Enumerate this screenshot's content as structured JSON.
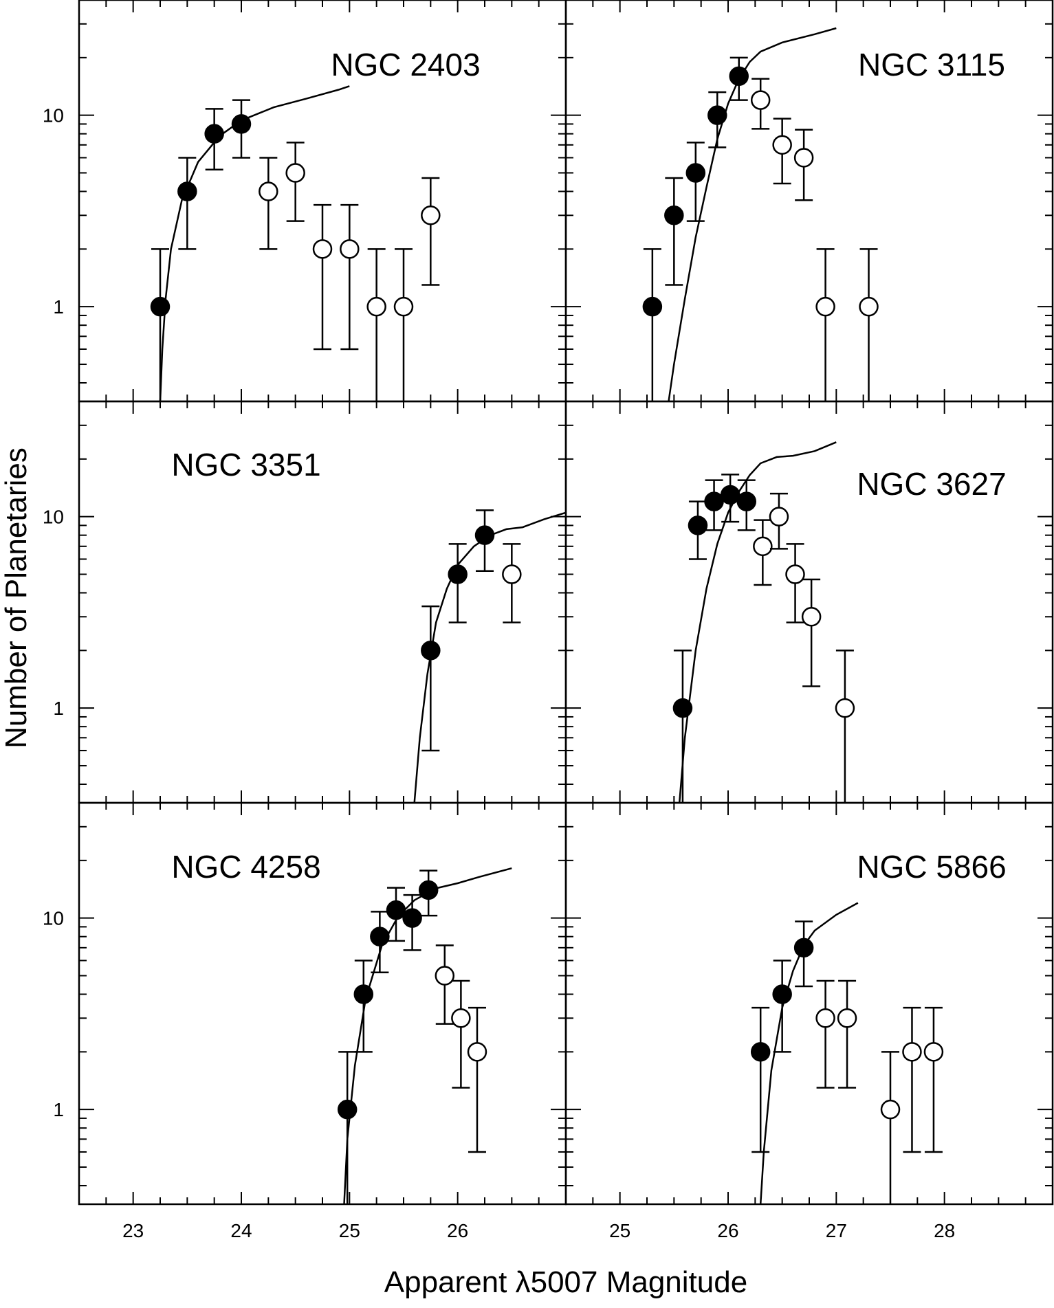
{
  "figure": {
    "xlabel": "Apparent λ5007 Magnitude",
    "ylabel": "Number of Planetaries"
  },
  "chart_data": [
    {
      "type": "scatter",
      "title": "NGC 2403",
      "xlim": [
        22.5,
        27
      ],
      "ylim": [
        0.32,
        40
      ],
      "yscale": "log",
      "xticklabels": [],
      "yticklabels": [
        "1",
        "10"
      ],
      "series": [
        {
          "marker": "filled",
          "x": [
            23.25,
            23.5,
            23.75,
            24.0
          ],
          "y": [
            1,
            4,
            8,
            9
          ],
          "yerr_low": [
            0.32,
            2,
            5.2,
            6
          ],
          "yerr_high": [
            2,
            6,
            10.8,
            12
          ]
        },
        {
          "marker": "open",
          "x": [
            24.25,
            24.5,
            24.75,
            25.0,
            25.25,
            25.5,
            25.75
          ],
          "y": [
            4,
            5,
            2,
            2,
            1,
            1,
            3
          ],
          "yerr_low": [
            2,
            2.8,
            0.6,
            0.6,
            0.32,
            0.32,
            1.3
          ],
          "yerr_high": [
            6,
            7.2,
            3.4,
            3.4,
            2,
            2,
            4.7
          ]
        }
      ],
      "curve": {
        "x": [
          23.25,
          23.27,
          23.3,
          23.35,
          23.45,
          23.6,
          23.8,
          24.0,
          24.3,
          24.6,
          24.9,
          25.0
        ],
        "y": [
          0.32,
          0.6,
          1.1,
          2.0,
          3.6,
          5.7,
          7.8,
          9.4,
          11.0,
          12.2,
          13.6,
          14.2
        ]
      }
    },
    {
      "type": "scatter",
      "title": "NGC 3115",
      "xlim": [
        24.5,
        29
      ],
      "ylim": [
        0.32,
        40
      ],
      "yscale": "log",
      "xticklabels": [],
      "yticklabels": [],
      "series": [
        {
          "marker": "filled",
          "x": [
            25.3,
            25.5,
            25.7,
            25.9,
            26.1
          ],
          "y": [
            1,
            3,
            5,
            10,
            16
          ],
          "yerr_low": [
            0.32,
            1.3,
            2.8,
            6.8,
            12
          ],
          "yerr_high": [
            2,
            4.7,
            7.2,
            13.2,
            20
          ]
        },
        {
          "marker": "open",
          "x": [
            26.3,
            26.5,
            26.7,
            26.9,
            27.3
          ],
          "y": [
            12,
            7,
            6,
            1,
            1
          ],
          "yerr_low": [
            8.5,
            4.4,
            3.6,
            0.32,
            0.32
          ],
          "yerr_high": [
            15.5,
            9.6,
            8.4,
            2,
            2
          ]
        }
      ],
      "curve": {
        "x": [
          25.45,
          25.5,
          25.6,
          25.7,
          25.8,
          25.9,
          26.0,
          26.1,
          26.2,
          26.3,
          26.5,
          26.8,
          27.0
        ],
        "y": [
          0.32,
          0.5,
          1.1,
          2.3,
          4.2,
          7.5,
          11.5,
          15.5,
          19,
          21.5,
          24,
          26.5,
          28.5
        ]
      }
    },
    {
      "type": "scatter",
      "title": "NGC 3351",
      "xlim": [
        22.5,
        27
      ],
      "ylim": [
        0.32,
        40
      ],
      "yscale": "log",
      "xticklabels": [],
      "yticklabels": [
        "1",
        "10"
      ],
      "series": [
        {
          "marker": "filled",
          "x": [
            25.75,
            26.0,
            26.25
          ],
          "y": [
            2,
            5,
            8
          ],
          "yerr_low": [
            0.6,
            2.8,
            5.2
          ],
          "yerr_high": [
            3.4,
            7.2,
            10.8
          ]
        },
        {
          "marker": "open",
          "x": [
            26.5
          ],
          "y": [
            5
          ],
          "yerr_low": [
            2.8
          ],
          "yerr_high": [
            7.2
          ]
        }
      ],
      "curve": {
        "x": [
          25.6,
          25.65,
          25.72,
          25.8,
          25.9,
          26.0,
          26.15,
          26.3,
          26.45,
          26.6,
          26.8,
          27.0
        ],
        "y": [
          0.32,
          0.7,
          1.5,
          2.8,
          4.2,
          5.6,
          7.0,
          8.0,
          8.6,
          8.8,
          9.7,
          10.5
        ]
      }
    },
    {
      "type": "scatter",
      "title": "NGC 3627",
      "xlim": [
        24.5,
        29
      ],
      "ylim": [
        0.32,
        40
      ],
      "yscale": "log",
      "xticklabels": [],
      "yticklabels": [],
      "series": [
        {
          "marker": "filled",
          "x": [
            25.58,
            25.72,
            25.87,
            26.02,
            26.17
          ],
          "y": [
            1,
            9,
            12,
            13,
            12
          ],
          "yerr_low": [
            0.32,
            6,
            8.5,
            9.4,
            8.5
          ],
          "yerr_high": [
            2,
            12,
            15.5,
            16.6,
            15.5
          ]
        },
        {
          "marker": "open",
          "x": [
            26.32,
            26.47,
            26.62,
            26.77,
            27.08
          ],
          "y": [
            7,
            10,
            5,
            3,
            1
          ],
          "yerr_low": [
            4.4,
            6.8,
            2.8,
            1.3,
            0.32
          ],
          "yerr_high": [
            9.6,
            13.2,
            7.2,
            4.7,
            2
          ]
        }
      ],
      "curve": {
        "x": [
          25.55,
          25.6,
          25.7,
          25.8,
          25.9,
          26.0,
          26.1,
          26.2,
          26.3,
          26.45,
          26.6,
          26.8,
          27.0
        ],
        "y": [
          0.32,
          0.7,
          2.0,
          4.2,
          7.2,
          10.5,
          13.5,
          16.5,
          19,
          20.5,
          20.8,
          22,
          24.5
        ]
      }
    },
    {
      "type": "scatter",
      "title": "NGC 4258",
      "xlim": [
        22.5,
        27
      ],
      "ylim": [
        0.32,
        40
      ],
      "yscale": "log",
      "xticklabels": [
        "23",
        "24",
        "25",
        "26"
      ],
      "yticklabels": [
        "1",
        "10"
      ],
      "series": [
        {
          "marker": "filled",
          "x": [
            24.98,
            25.13,
            25.28,
            25.43,
            25.58,
            25.73
          ],
          "y": [
            1,
            4,
            8,
            11,
            10,
            14
          ],
          "yerr_low": [
            0.32,
            2,
            5.2,
            7.6,
            6.8,
            10.3
          ],
          "yerr_high": [
            2,
            6,
            10.8,
            14.4,
            13.2,
            17.7
          ]
        },
        {
          "marker": "open",
          "x": [
            25.88,
            26.03,
            26.18
          ],
          "y": [
            5,
            3,
            2
          ],
          "yerr_low": [
            2.8,
            1.3,
            0.6
          ],
          "yerr_high": [
            7.2,
            4.7,
            3.4
          ]
        }
      ],
      "curve": {
        "x": [
          24.95,
          24.98,
          25.05,
          25.15,
          25.3,
          25.45,
          25.6,
          25.8,
          26.0,
          26.2,
          26.5
        ],
        "y": [
          0.32,
          0.7,
          1.7,
          3.8,
          7.2,
          10.2,
          12.4,
          14.3,
          15.2,
          16.4,
          18.2
        ]
      }
    },
    {
      "type": "scatter",
      "title": "NGC 5866",
      "xlim": [
        24.5,
        29
      ],
      "ylim": [
        0.32,
        40
      ],
      "yscale": "log",
      "xticklabels": [
        "25",
        "26",
        "27",
        "28"
      ],
      "yticklabels": [],
      "series": [
        {
          "marker": "filled",
          "x": [
            26.3,
            26.5,
            26.7
          ],
          "y": [
            2,
            4,
            7
          ],
          "yerr_low": [
            0.6,
            2,
            4.4
          ],
          "yerr_high": [
            3.4,
            6,
            9.6
          ]
        },
        {
          "marker": "open",
          "x": [
            26.9,
            27.1,
            27.5,
            27.7,
            27.9
          ],
          "y": [
            3,
            3,
            1,
            2,
            2
          ],
          "yerr_low": [
            1.3,
            1.3,
            0.32,
            0.6,
            0.6
          ],
          "yerr_high": [
            4.7,
            4.7,
            2,
            3.4,
            3.4
          ]
        }
      ],
      "curve": {
        "x": [
          26.3,
          26.33,
          26.4,
          26.5,
          26.6,
          26.7,
          26.8,
          27.0,
          27.2
        ],
        "y": [
          0.32,
          0.6,
          1.6,
          3.4,
          5.3,
          7.2,
          8.6,
          10.4,
          12.0
        ]
      }
    }
  ]
}
